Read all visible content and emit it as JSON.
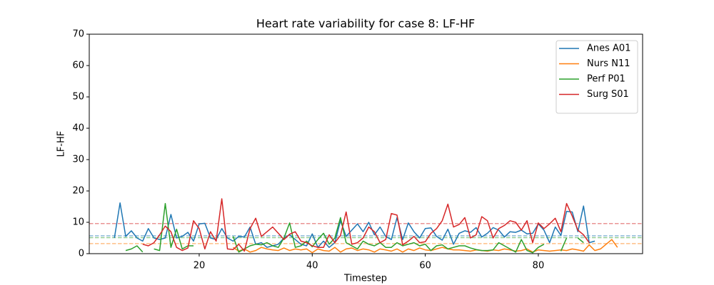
{
  "chart_data": {
    "type": "line",
    "title": "Heart rate variability for case 8: LF-HF",
    "x_label": "Timestep",
    "y_label": "LF-HF",
    "x": [
      5,
      6,
      7,
      8,
      9,
      10,
      11,
      12,
      13,
      14,
      15,
      16,
      17,
      18,
      19,
      20,
      21,
      22,
      23,
      24,
      25,
      26,
      27,
      28,
      29,
      30,
      31,
      32,
      33,
      34,
      35,
      36,
      37,
      38,
      39,
      40,
      41,
      42,
      43,
      44,
      45,
      46,
      47,
      48,
      49,
      50,
      51,
      52,
      53,
      54,
      55,
      56,
      57,
      58,
      59,
      60,
      61,
      62,
      63,
      64,
      65,
      66,
      67,
      68,
      69,
      70,
      71,
      72,
      73,
      74,
      75,
      76,
      77,
      78,
      79,
      80,
      81,
      82,
      83,
      84,
      85,
      86,
      87,
      88,
      89,
      90,
      91,
      92,
      93,
      94
    ],
    "series": [
      {
        "name": "Anes A01",
        "color": "#1f77b4",
        "reference": 5.7,
        "values": [
          5,
          16.2,
          5.5,
          7.3,
          5,
          4,
          8,
          5,
          4.5,
          5,
          12.5,
          5,
          5.5,
          6.8,
          4,
          9.5,
          9.7,
          5,
          4.5,
          8,
          5,
          4,
          5.5,
          5.3,
          8.5,
          3,
          3.5,
          2,
          2.5,
          3,
          5,
          6,
          4.5,
          3,
          2.5,
          6.3,
          2,
          4,
          2,
          3.5,
          10.5,
          5.5,
          7.5,
          9.5,
          7,
          10,
          6,
          8.5,
          5.5,
          4.5,
          11.5,
          4.5,
          9.8,
          7,
          5,
          8,
          8.2,
          5.5,
          4.3,
          7.8,
          3,
          6.5,
          7.3,
          6.8,
          8.3,
          5.3,
          6.5,
          8.3,
          7.5,
          5.3,
          7,
          6.8,
          7.5,
          6.3,
          6.5,
          9.5,
          7.5,
          3.5,
          8.5,
          5.8,
          13.5,
          13.3,
          7,
          15.2,
          3.5,
          4,
          null,
          null,
          null,
          null
        ]
      },
      {
        "name": "Nurs N11",
        "color": "#ff7f0e",
        "reference": 3.2,
        "values": [
          null,
          null,
          null,
          null,
          null,
          null,
          null,
          null,
          null,
          null,
          null,
          null,
          null,
          null,
          null,
          null,
          null,
          null,
          null,
          null,
          null,
          2,
          0.8,
          1.5,
          0.5,
          1,
          2,
          1.5,
          1.2,
          1,
          1.8,
          1,
          1.5,
          1.2,
          1.5,
          0.3,
          1.5,
          1,
          0.8,
          2,
          0.5,
          1.5,
          1.8,
          1,
          1.5,
          1.2,
          0.5,
          1.5,
          1.2,
          0.8,
          1.5,
          0.5,
          1.5,
          1,
          1.8,
          1.2,
          1,
          1.5,
          2,
          1.5,
          1.2,
          1.2,
          1,
          0.8,
          1.2,
          1,
          0.8,
          1.2,
          1,
          1.5,
          1.2,
          0.8,
          1,
          1.5,
          0.5,
          1.2,
          1,
          0.8,
          1,
          1.2,
          1,
          1.5,
          1.2,
          0.8,
          2.8,
          1,
          1.5,
          3,
          4.5,
          2
        ]
      },
      {
        "name": "Perf P01",
        "color": "#2ca02c",
        "reference": 5.1,
        "values": [
          null,
          null,
          1,
          1.5,
          2.5,
          0.5,
          null,
          1.5,
          1,
          16,
          2,
          7.8,
          1.5,
          2.5,
          2.5,
          null,
          null,
          null,
          null,
          null,
          null,
          5.5,
          0.5,
          1.5,
          2.5,
          3,
          2.8,
          3.5,
          2.5,
          2,
          5,
          9.8,
          2,
          2.5,
          4,
          2.2,
          4.5,
          6.5,
          3,
          5,
          11.5,
          3.5,
          2.5,
          1.5,
          4,
          3,
          2.5,
          3.5,
          2,
          2,
          3.5,
          2.5,
          3,
          3.5,
          2.5,
          3,
          1,
          2.5,
          2.8,
          1.5,
          2,
          2.5,
          2.5,
          1.8,
          1.3,
          1,
          1,
          1.2,
          3.5,
          2.5,
          1.5,
          0.5,
          4.5,
          1,
          0.3,
          2,
          3,
          null,
          null,
          0.8,
          5,
          null,
          5,
          3.5,
          null,
          null,
          null,
          null,
          null,
          null
        ]
      },
      {
        "name": "Surg S01",
        "color": "#d62728",
        "reference": 9.6,
        "values": [
          null,
          null,
          null,
          null,
          null,
          3,
          2.5,
          3.5,
          6,
          8.8,
          7,
          2,
          1,
          1.8,
          10.5,
          8,
          1.5,
          7,
          4,
          17.5,
          1.5,
          1.3,
          3,
          0.8,
          8,
          11.3,
          5.5,
          7,
          8.5,
          6.5,
          4.5,
          6.2,
          7,
          4,
          3.5,
          2.5,
          2,
          2,
          6,
          3.5,
          5.8,
          13.3,
          3,
          3.5,
          5,
          8.5,
          7,
          3.5,
          4.5,
          12.8,
          12.3,
          2.8,
          4,
          5.5,
          3.5,
          3.8,
          6.5,
          8,
          10.5,
          15.8,
          8.5,
          9.3,
          11.5,
          5,
          6,
          11.8,
          10.5,
          5,
          8,
          9,
          10.5,
          10,
          7.5,
          10.5,
          3.5,
          9.8,
          8,
          9.5,
          11.3,
          7,
          16,
          12,
          7.5,
          6,
          3.5,
          null,
          null,
          null,
          null,
          null
        ]
      }
    ],
    "xlim": [
      0.55,
      98.45
    ],
    "xticks": [
      20,
      40,
      60,
      80
    ],
    "ylim": [
      0,
      70
    ],
    "yticks": [
      0,
      10,
      20,
      30,
      40,
      50,
      60,
      70
    ],
    "legend": "upper right"
  }
}
